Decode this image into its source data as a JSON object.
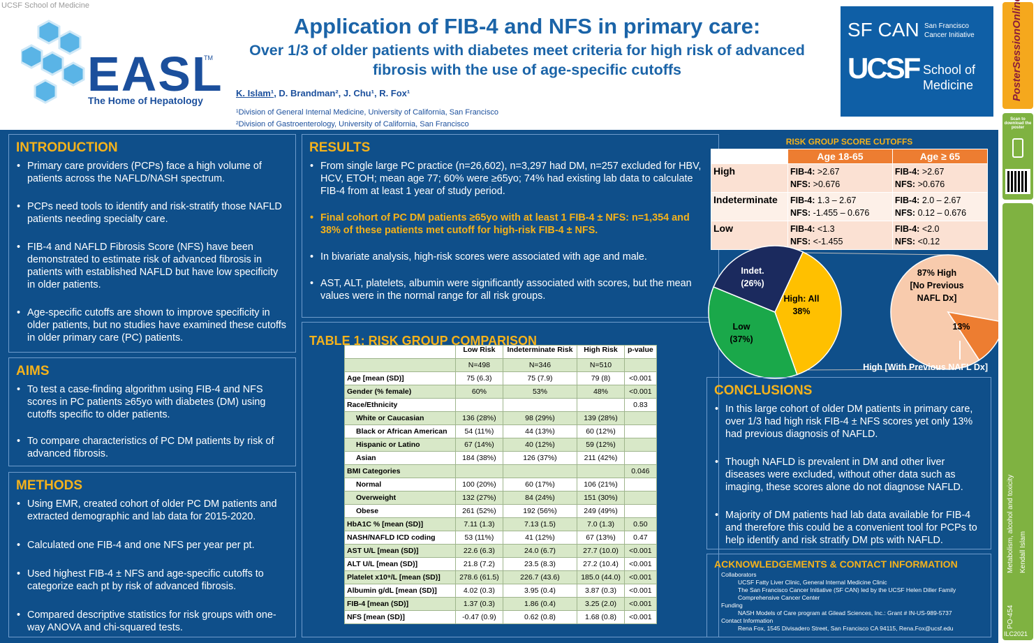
{
  "header": {
    "institution": "UCSF School of Medicine",
    "easl": "EASL",
    "tm": "TM",
    "easl_tagline": "The Home of Hepatology",
    "title": "Application of FIB-4 and NFS in primary care:",
    "subtitle": "Over 1/3 of older patients with diabetes meet criteria for high risk of advanced fibrosis with the use of age-specific cutoffs",
    "authors": [
      "K. Islam¹",
      "D. Brandman²",
      "J. Chu¹",
      "R. Fox¹"
    ],
    "affiliations": [
      "¹Division of General Internal Medicine, University of California, San Francisco",
      "²Division of Gastroenterology, University of California, San Francisco"
    ]
  },
  "sponsors": {
    "sfcan": "SF CAN",
    "sfcan_full": "San Francisco Cancer Initiative",
    "ucsf": "UCSF",
    "ucsf_school": "School of Medicine"
  },
  "sidebar": {
    "brand": "PosterSessionOnline",
    "scan": "Scan to download the poster",
    "topic": "Metabolism, alcohol and toxicity",
    "author": "Kendall Islam",
    "code": "PO-454",
    "event": "ILC2021"
  },
  "sections": {
    "introduction": {
      "title": "INTRODUCTION",
      "bullets": [
        "Primary care providers (PCPs) face a high volume of patients across the NAFLD/NASH spectrum.",
        "PCPs need tools to identify and risk-stratify those NAFLD patients needing specialty care.",
        "FIB-4 and NAFLD Fibrosis Score (NFS) have been demonstrated to estimate risk of advanced fibrosis in patients with established NAFLD but have low specificity in older patients.",
        "Age-specific cutoffs are shown to improve specificity in older patients, but no studies have examined these cutoffs in older primary care (PC) patients."
      ]
    },
    "aims": {
      "title": "AIMS",
      "bullets": [
        "To test a case-finding algorithm using FIB-4 and NFS scores in PC patients ≥65yo with diabetes (DM) using cutoffs specific to older patients.",
        "To compare characteristics of PC DM patients by risk of advanced fibrosis."
      ]
    },
    "methods": {
      "title": "METHODS",
      "bullets": [
        "Using EMR, created cohort of older PC DM patients and extracted demographic and lab data for 2015-2020.",
        "Calculated one FIB-4 and one NFS per year per pt.",
        "Used highest FIB-4 ± NFS and age-specific cutoffs to categorize each pt by risk of advanced fibrosis.",
        "Compared descriptive statistics for risk groups with one-way ANOVA and chi-squared tests."
      ]
    },
    "results": {
      "title": "RESULTS",
      "highlight_index": 1,
      "bullets": [
        "From single large PC practice (n=26,602), n=3,297 had DM, n=257 excluded for HBV, HCV, ETOH; mean age 77; 60% were ≥65yo; 74% had existing lab data to calculate FIB-4 from at least 1 year of study period.",
        "Final cohort of PC DM patients ≥65yo with at least 1 FIB-4 ± NFS: n=1,354 and 38% of these patients met cutoff for high-risk FIB-4 ± NFS.",
        "In bivariate analysis, high-risk scores were associated with age and male.",
        "AST, ALT, platelets, albumin were significantly associated with scores, but the mean values were in the normal range for all risk groups."
      ]
    },
    "conclusions": {
      "title": "CONCLUSIONS",
      "bullets": [
        "In this large cohort of older DM patients in primary care, over 1/3 had high risk FIB-4 ± NFS scores yet only 13% had previous diagnosis of NAFLD.",
        "Though NAFLD is prevalent in DM and other liver diseases were excluded, without other data such as imaging, these scores alone do not diagnose NAFLD.",
        "Majority of DM patients had lab data available for FIB-4 and therefore this could be a convenient tool for PCPs to help identify and risk stratify DM pts with NAFLD."
      ]
    },
    "acknowledgements": {
      "title": "ACKNOWLEDGEMENTS & CONTACT INFORMATION",
      "groups": [
        {
          "label": "Collaborators",
          "items": [
            "UCSF Fatty Liver Clinic, General Internal Medicine Clinic",
            "The San Francisco Cancer Initiative (SF CAN) led by the UCSF Helen Diller Family Comprehensive Cancer Center"
          ]
        },
        {
          "label": "Funding",
          "items": [
            "NASH Models of Care program at Gilead Sciences, Inc.: Grant # IN-US-989-5737"
          ]
        },
        {
          "label": "Contact Information",
          "items": [
            "Rena Fox, 1545 Divisadero Street, San Francisco CA 94115, Rena.Fox@ucsf.edu"
          ]
        }
      ]
    }
  },
  "risk_cutoffs": {
    "title": "RISK GROUP SCORE CUTOFFS",
    "columns": [
      "Age 18-65",
      "Age ≥ 65"
    ],
    "fib4_label": "FIB-4:",
    "nfs_label": "NFS:",
    "rows": [
      {
        "group": "High",
        "cells": [
          {
            "fib4": ">2.67",
            "nfs": ">0.676"
          },
          {
            "fib4": ">2.67",
            "nfs": ">0.676"
          }
        ]
      },
      {
        "group": "Indeterminate",
        "cells": [
          {
            "fib4": "1.3 – 2.67",
            "nfs": "-1.455 – 0.676"
          },
          {
            "fib4": "2.0 – 2.67",
            "nfs": "0.12 – 0.676"
          }
        ]
      },
      {
        "group": "Low",
        "cells": [
          {
            "fib4": "<1.3",
            "nfs": "<-1.455"
          },
          {
            "fib4": "<2.0",
            "nfs": "<0.12"
          }
        ]
      }
    ]
  },
  "chart_data": [
    {
      "type": "pie",
      "categories": [
        "High: All",
        "Low",
        "Indet."
      ],
      "values": [
        38,
        37,
        26
      ],
      "value_labels": [
        "38%",
        "(37%)",
        "(26%)"
      ],
      "colors": [
        "#ffc000",
        "#1aa84a",
        "#1b2a5e"
      ]
    },
    {
      "type": "pie",
      "categories": [
        "High [No Previous NAFL Dx]",
        "High [With Previous NAFL Dx]"
      ],
      "values": [
        87,
        13
      ],
      "value_labels": [
        "87%",
        "13%"
      ],
      "colors": [
        "#f8cbad",
        "#ed7d31"
      ]
    }
  ],
  "table1": {
    "title": "TABLE 1: RISK GROUP COMPARISON",
    "header": [
      null,
      "Low Risk",
      "Indeterminate Risk",
      "High Risk",
      "p-value"
    ],
    "n_row": [
      null,
      "N=498",
      "N=346",
      "N=510",
      null
    ],
    "rows": [
      {
        "cells": [
          "Age [mean (SD)]",
          "75 (6.3)",
          "75 (7.9)",
          "79 (8)",
          "<0.001"
        ]
      },
      {
        "cells": [
          "Gender (% female)",
          "60%",
          "53%",
          "48%",
          "<0.001"
        ]
      },
      {
        "cells": [
          "Race/Ethnicity",
          null,
          null,
          null,
          "0.83"
        ]
      },
      {
        "indent": true,
        "cells": [
          "White or Caucasian",
          "136 (28%)",
          "98 (29%)",
          "139 (28%)",
          null
        ]
      },
      {
        "indent": true,
        "cells": [
          "Black or African American",
          "54 (11%)",
          "44 (13%)",
          "60 (12%)",
          null
        ]
      },
      {
        "indent": true,
        "cells": [
          "Hispanic or Latino",
          "67 (14%)",
          "40 (12%)",
          "59 (12%)",
          null
        ]
      },
      {
        "indent": true,
        "cells": [
          "Asian",
          "184 (38%)",
          "126 (37%)",
          "211 (42%)",
          null
        ]
      },
      {
        "cells": [
          "BMI Categories",
          null,
          null,
          null,
          "0.046"
        ]
      },
      {
        "indent": true,
        "cells": [
          "Normal",
          "100 (20%)",
          "60 (17%)",
          "106 (21%)",
          null
        ]
      },
      {
        "indent": true,
        "cells": [
          "Overweight",
          "132 (27%)",
          "84 (24%)",
          "151 (30%)",
          null
        ]
      },
      {
        "indent": true,
        "cells": [
          "Obese",
          "261 (52%)",
          "192 (56%)",
          "249 (49%)",
          null
        ]
      },
      {
        "cells": [
          "HbA1C % [mean (SD)]",
          "7.11 (1.3)",
          "7.13 (1.5)",
          "7.0 (1.3)",
          "0.50"
        ]
      },
      {
        "cells": [
          "NASH/NAFLD ICD coding",
          "53 (11%)",
          "41 (12%)",
          "67 (13%)",
          "0.47"
        ]
      },
      {
        "cells": [
          "AST U/L [mean (SD)]",
          "22.6 (6.3)",
          "24.0 (6.7)",
          "27.7 (10.0)",
          "<0.001"
        ]
      },
      {
        "cells": [
          "ALT U/L [mean (SD)]",
          "21.8 (7.2)",
          "23.5 (8.3)",
          "27.2 (10.4)",
          "<0.001"
        ]
      },
      {
        "cells": [
          "Platelet x10⁹/L [mean (SD)]",
          "278.6 (61.5)",
          "226.7 (43.6)",
          "185.0 (44.0)",
          "<0.001"
        ]
      },
      {
        "cells": [
          "Albumin g/dL [mean (SD)]",
          "4.02 (0.3)",
          "3.95 (0.4)",
          "3.87 (0.3)",
          "<0.001"
        ]
      },
      {
        "cells": [
          "FIB-4 [mean (SD)]",
          "1.37 (0.3)",
          "1.86 (0.4)",
          "3.25 (2.0)",
          "<0.001"
        ]
      },
      {
        "cells": [
          "NFS [mean (SD)]",
          "-0.47 (0.9)",
          "0.62 (0.8)",
          "1.68 (0.8)",
          "<0.001"
        ]
      }
    ]
  }
}
